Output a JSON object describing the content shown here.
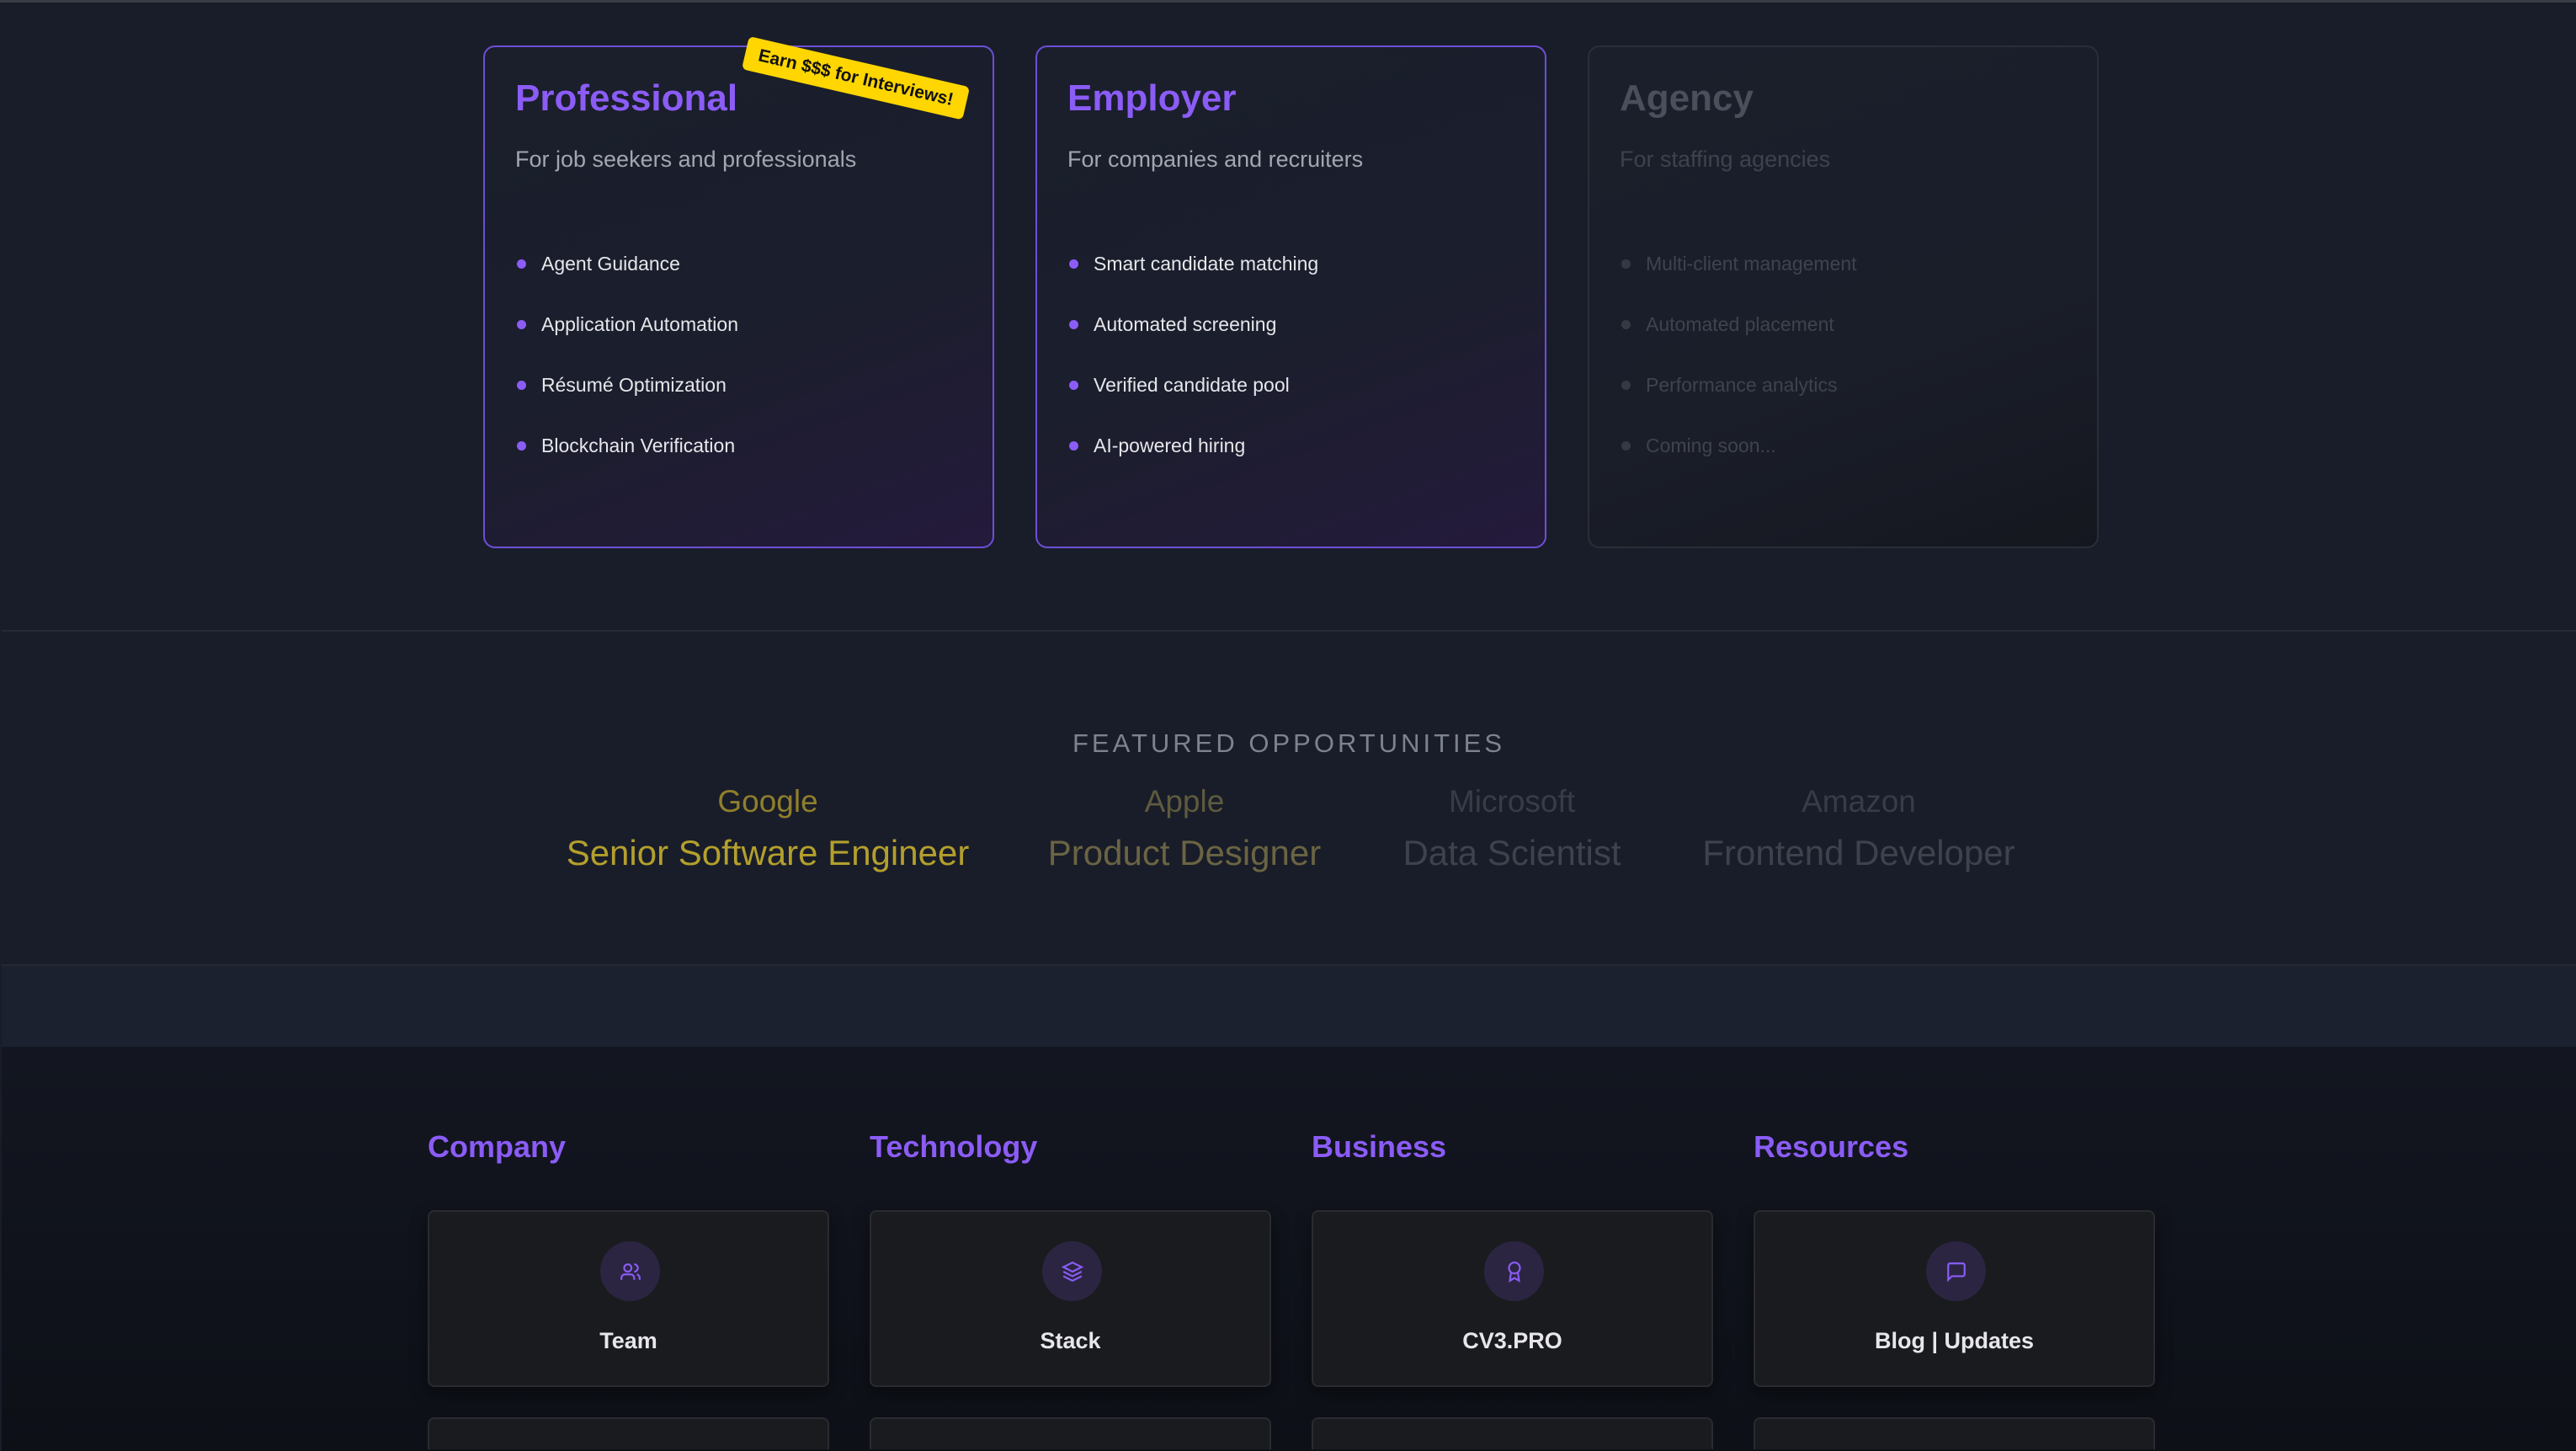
{
  "plans": [
    {
      "title": "Professional",
      "subtitle": "For job seekers and professionals",
      "features": [
        "Agent Guidance",
        "Application Automation",
        "Résumé Optimization",
        "Blockchain Verification"
      ],
      "badge": "Earn $$$ for Interviews!"
    },
    {
      "title": "Employer",
      "subtitle": "For companies and recruiters",
      "features": [
        "Smart candidate matching",
        "Automated screening",
        "Verified candidate pool",
        "AI-powered hiring"
      ]
    },
    {
      "title": "Agency",
      "subtitle": "For staffing agencies",
      "features": [
        "Multi-client management",
        "Automated placement",
        "Performance analytics",
        "Coming soon..."
      ]
    }
  ],
  "featured": {
    "title": "FEATURED OPPORTUNITIES",
    "items": [
      {
        "company": "Google",
        "job": "Senior Software Engineer"
      },
      {
        "company": "Apple",
        "job": "Product Designer"
      },
      {
        "company": "Microsoft",
        "job": "Data Scientist"
      },
      {
        "company": "Amazon",
        "job": "Frontend Developer"
      }
    ]
  },
  "footer": {
    "columns": [
      {
        "heading": "Company",
        "link": "Team",
        "icon": "users-icon"
      },
      {
        "heading": "Technology",
        "link": "Stack",
        "icon": "layers-icon"
      },
      {
        "heading": "Business",
        "link": "CV3.PRO",
        "icon": "award-icon"
      },
      {
        "heading": "Resources",
        "link": "Blog | Updates",
        "icon": "message-square-icon"
      }
    ]
  },
  "colors": {
    "accent": "#8b5cf6",
    "badge": "#ffd600",
    "highlight": "#b8a02e"
  }
}
